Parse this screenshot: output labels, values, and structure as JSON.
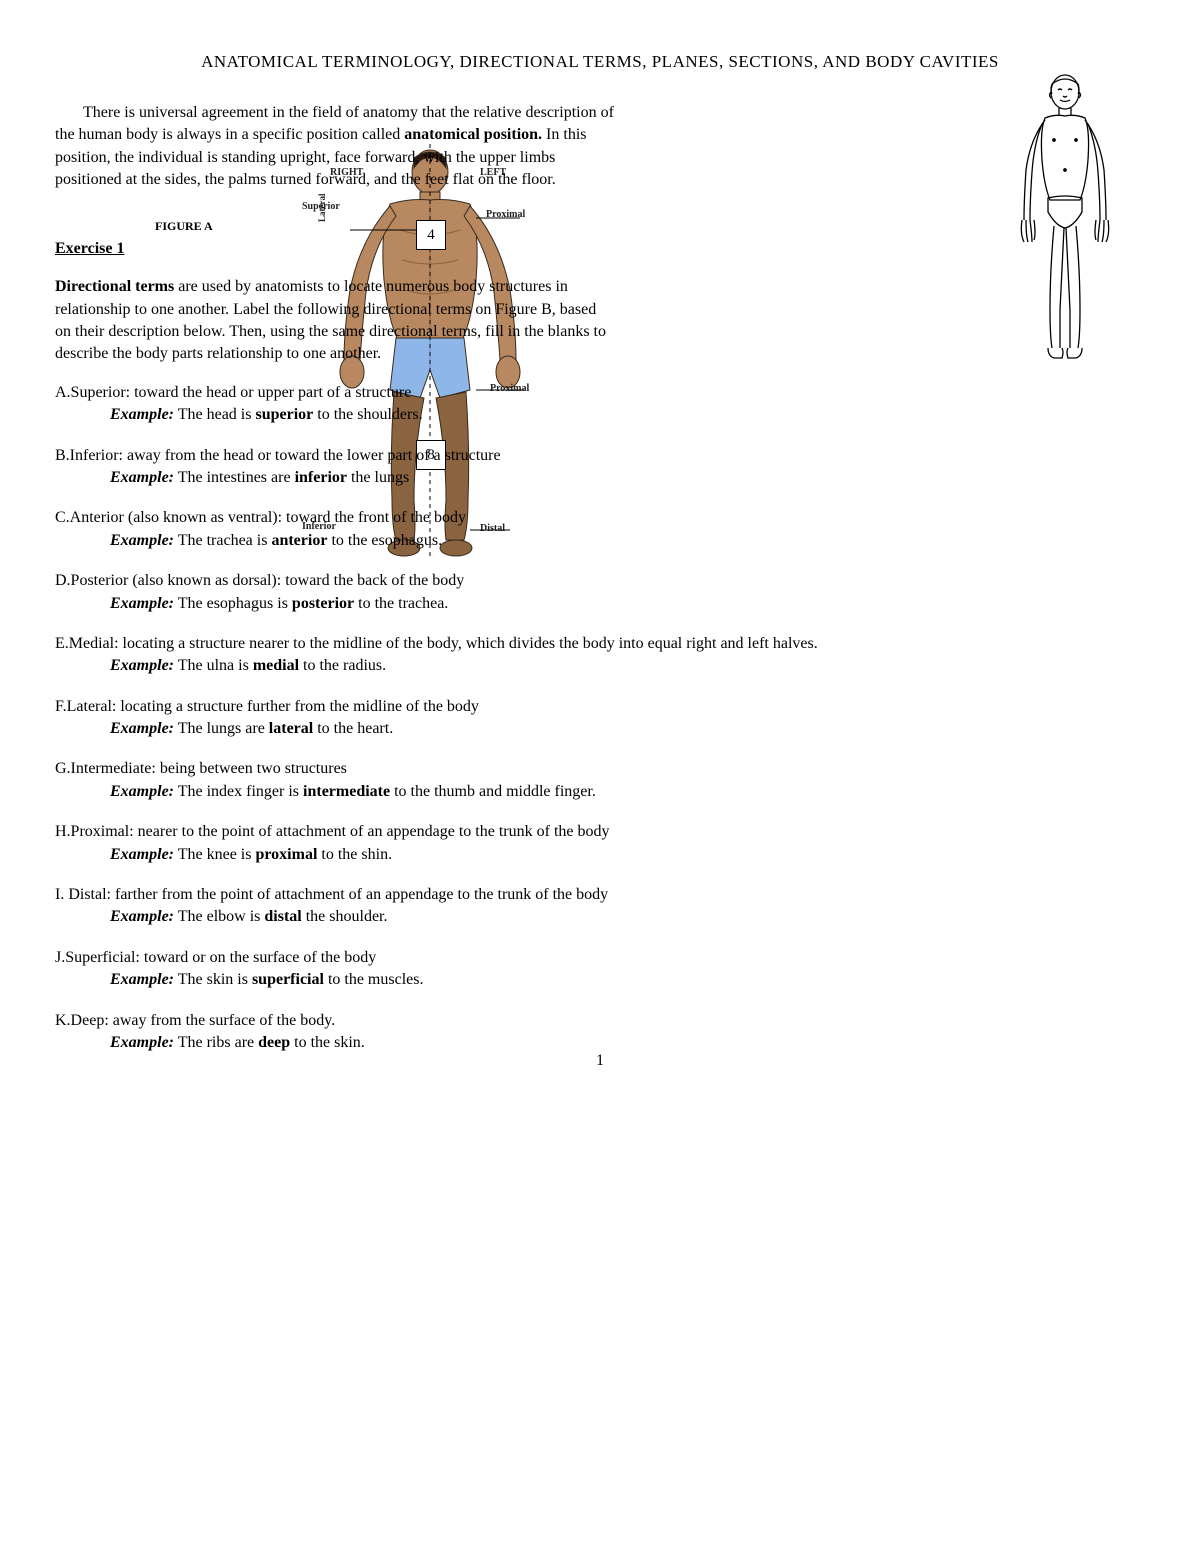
{
  "title": "ANATOMICAL TERMINOLOGY, DIRECTIONAL TERMS, PLANES, SECTIONS, AND BODY CAVITIES",
  "intro": {
    "pre": "There is universal agreement in the field of anatomy that the relative description of the human body is always in a specific position called ",
    "bold": "anatomical position.",
    "post": "  In this position, the individual is standing upright, face forward, with the upper limbs positioned at the sides, the palms turned forward, and the feet flat on the floor."
  },
  "figure_a_label": "FIGURE A",
  "exercise1": {
    "heading": "Exercise 1",
    "para_bold": "Directional terms",
    "para_rest": " are used by anatomists to locate numerous body structures in relationship to one another.  Label the following directional terms on Figure B, based on their description below.  Then, using the same directional terms, fill in the blanks to describe the body parts relationship to one another."
  },
  "anatomy_labels": {
    "superior": "Superior",
    "inferior": "Inferior",
    "right": "RIGHT",
    "left": "LEFT",
    "lateral": "Lateral",
    "proximal_top": "Proximal",
    "proximal_mid": "Proximal",
    "distal": "Distal",
    "box4": "4",
    "box8": "8"
  },
  "terms": [
    {
      "letter": "A.",
      "name": "Superior",
      "def": ":  toward the head or upper part of a structure",
      "ex_pre": "The head is ",
      "ex_bold": "superior",
      "ex_post": " to the shoulders."
    },
    {
      "letter": "B.",
      "name": "Inferior",
      "def": ": away from the head or toward the lower part of a structure",
      "ex_pre": "The intestines are ",
      "ex_bold": "inferior",
      "ex_post": " the lungs"
    },
    {
      "letter": "C.",
      "name": "Anterior (also known as ventral)",
      "def": ": toward the front of the body",
      "ex_pre": "The trachea is ",
      "ex_bold": "anterior",
      "ex_post": " to the esophagus."
    },
    {
      "letter": "D.",
      "name": "Posterior (also known as dorsal)",
      "def": ": toward the back of the body",
      "ex_pre": "The esophagus is ",
      "ex_bold": "posterior",
      "ex_post": " to the trachea."
    },
    {
      "letter": "E.",
      "name": "Medial",
      "def": ": locating a structure nearer to the midline of the body, which divides the body into equal right and left halves.",
      "ex_pre": "The ulna is ",
      "ex_bold": "medial",
      "ex_post": " to the radius."
    },
    {
      "letter": "F.",
      "name": "Lateral",
      "def": ": locating a structure further from the midline of the body",
      "ex_pre": "The lungs are ",
      "ex_bold": "lateral",
      "ex_post": " to the heart."
    },
    {
      "letter": "G.",
      "name": "Intermediate",
      "def": ": being between two structures",
      "ex_pre": "The index finger is ",
      "ex_bold": "intermediate",
      "ex_post": " to the thumb and middle finger."
    },
    {
      "letter": "H.",
      "name": "Proximal",
      "def": ": nearer to the point of attachment of an appendage to the trunk of the body",
      "ex_pre": "The knee is ",
      "ex_bold": "proximal",
      "ex_post": " to the shin."
    },
    {
      "letter": "I. ",
      "name": " Distal",
      "def": ": farther from the point of attachment of an appendage to the trunk of the body",
      "ex_pre": "The elbow is ",
      "ex_bold": "distal",
      "ex_post": " the shoulder."
    },
    {
      "letter": "J.",
      "name": "Superficial",
      "def": ": toward or on the surface of the body",
      "ex_pre": "The skin is ",
      "ex_bold": "superficial",
      "ex_post": " to the muscles."
    },
    {
      "letter": "K.",
      "name": "Deep",
      "def": ": away from the surface of the body.",
      "ex_pre": "The ribs are ",
      "ex_bold": "deep",
      "ex_post": " to the skin."
    }
  ],
  "example_label": "Example:",
  "page_number": "1",
  "colors": {
    "skin": "#b88860",
    "skin_dark": "#8a6340",
    "shorts": "#8fb6e8",
    "shorts_dark": "#6c94c9",
    "hair": "#2a1a0f",
    "outline": "#3a2a1a",
    "line_figure_stroke": "#000000"
  }
}
